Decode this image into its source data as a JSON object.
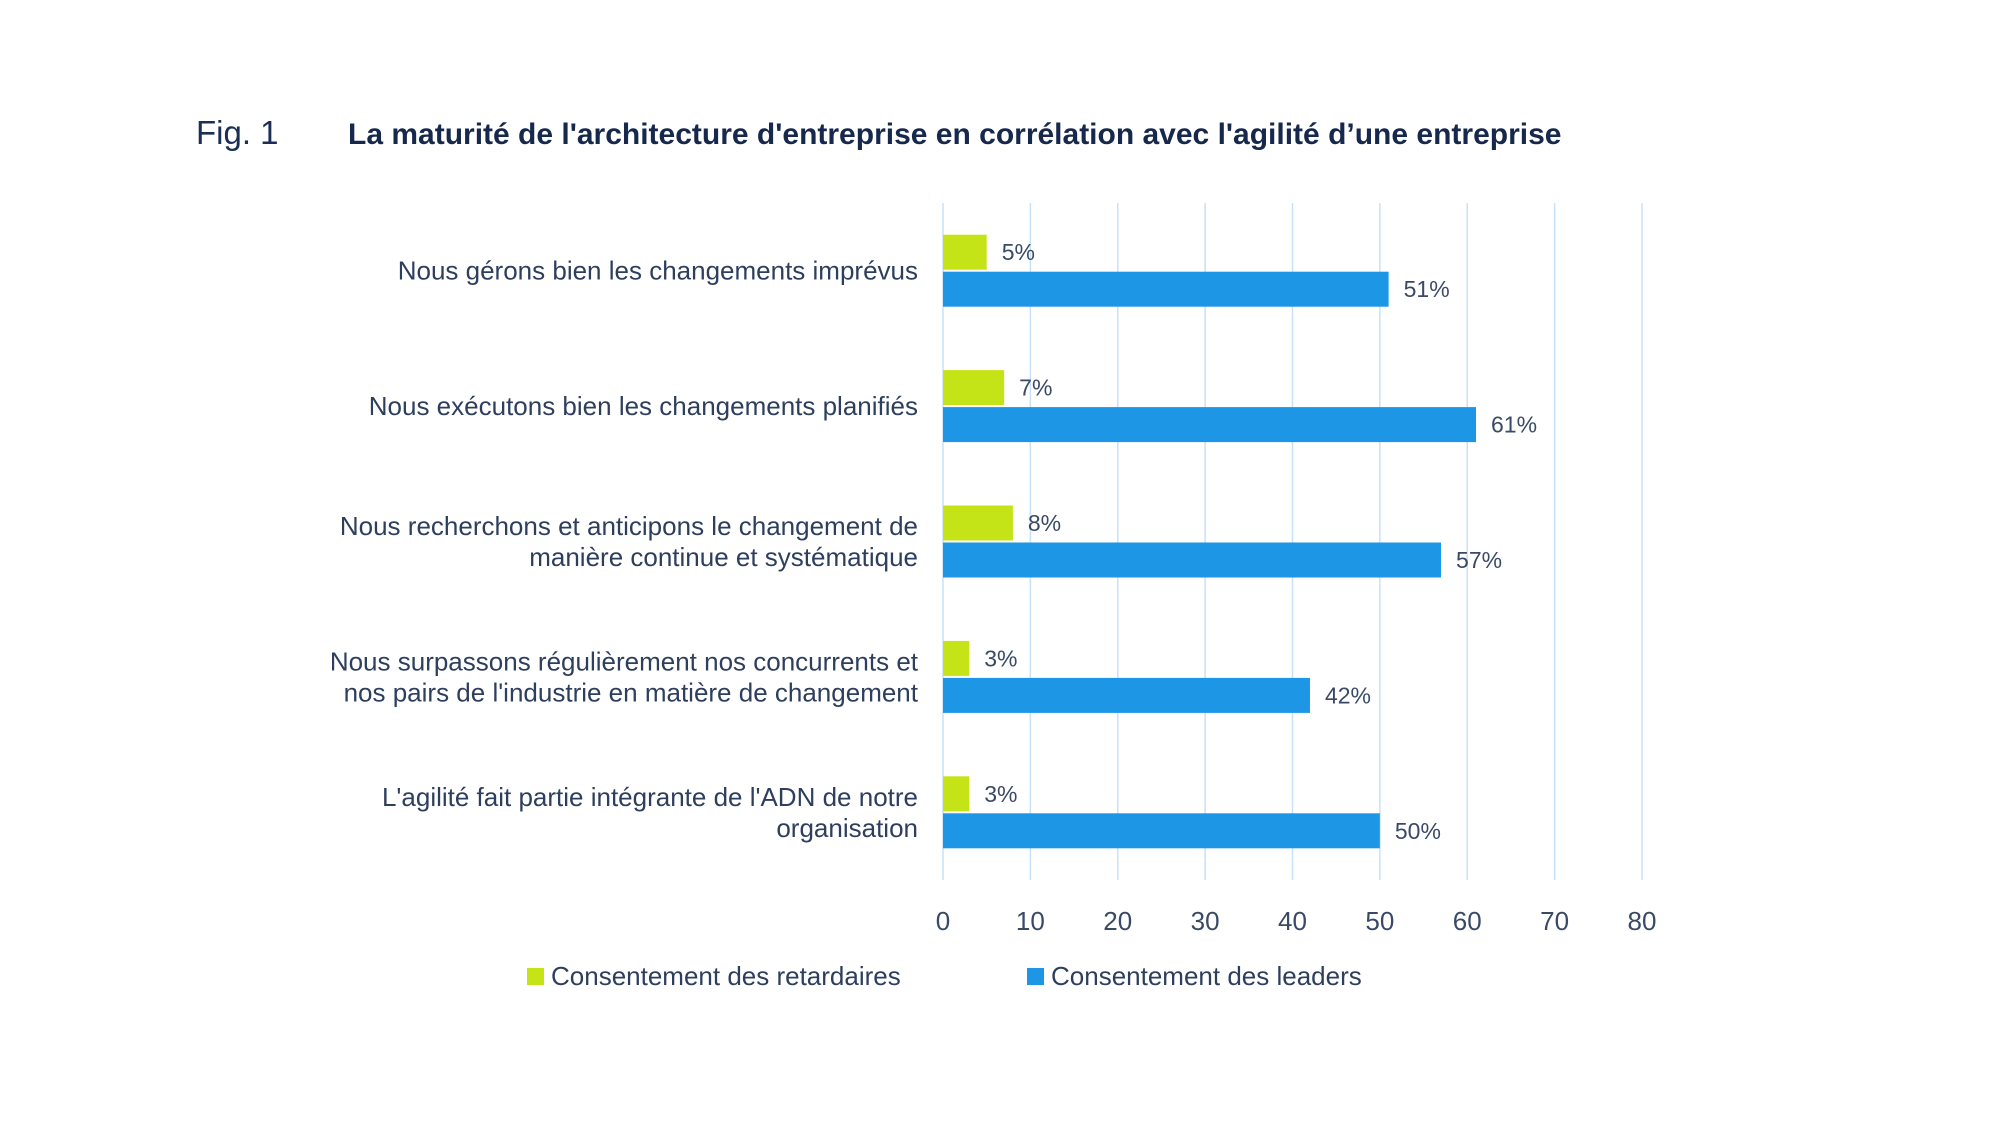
{
  "figure": {
    "label": "Fig. 1",
    "title": "La maturité de l'architecture d'entreprise en corrélation avec l'agilité d’une entreprise"
  },
  "chart_data": {
    "type": "bar",
    "orientation": "horizontal",
    "title": "La maturité de l'architecture d'entreprise en corrélation avec l'agilité d’une entreprise",
    "xlabel": "",
    "ylabel": "",
    "xlim": [
      0,
      80
    ],
    "x_ticks": [
      "0",
      "10",
      "20",
      "30",
      "40",
      "50",
      "60",
      "70",
      "80"
    ],
    "grid": "vertical",
    "legend_position": "bottom",
    "categories": [
      [
        "Nous gérons bien les changements imprévus"
      ],
      [
        "Nous exécutons bien les changements planifiés"
      ],
      [
        "Nous recherchons et anticipons le changement de",
        "manière continue et systématique"
      ],
      [
        "Nous surpassons régulièrement nos concurrents et",
        "nos pairs de l'industrie en matière de changement"
      ],
      [
        "L'agilité fait partie intégrante de l'ADN de notre",
        "organisation"
      ]
    ],
    "series": [
      {
        "name": "Consentement des retardaires",
        "color": "#c5e418",
        "values": [
          5,
          7,
          8,
          3,
          3
        ],
        "labels": [
          "5%",
          "7%",
          "8%",
          "3%",
          "3%"
        ]
      },
      {
        "name": "Consentement des leaders",
        "color": "#1e96e6",
        "values": [
          51,
          61,
          57,
          42,
          50
        ],
        "labels": [
          "51%",
          "61%",
          "57%",
          "42%",
          "50%"
        ]
      }
    ],
    "gridline_color": "#c9e1f7"
  }
}
